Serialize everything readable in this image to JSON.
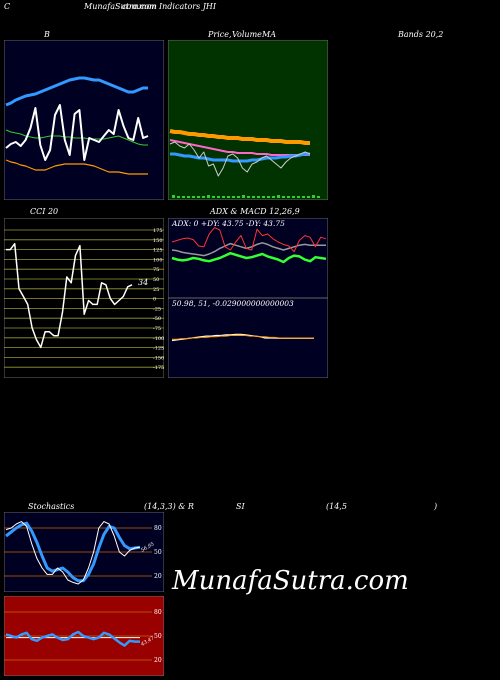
{
  "header": {
    "c_label": "C",
    "site_title": "MunafaSutra.com",
    "overlap_title": "common Indicators JHI",
    "b_label": "B",
    "price_label": "Price,",
    "volume_label": "Volume",
    "ma_label": "MA",
    "bands_label": "Bands 20,2"
  },
  "cci": {
    "title": "CCI 20",
    "last_value_label": "34",
    "ticks": [
      "175",
      "150",
      "125",
      "100",
      "75",
      "50",
      "25",
      "0",
      "-25",
      "-50",
      "-75",
      "-100",
      "-125",
      "-150",
      "-175"
    ]
  },
  "adx_macd": {
    "title": "ADX & MACD 12,26,9",
    "adx_readout": "ADX: 0  +DY: 43.75 -DY: 43.75",
    "macd_readout": "50.98,  51,  -0.029000000000003"
  },
  "stoch_rsi": {
    "title_left": "Stochastics",
    "title_mid": "(14,3,3) & R",
    "title_si": "SI",
    "title_right": "(14,5",
    "title_close": ")",
    "stoch_ticks": [
      "80",
      "50",
      "20"
    ],
    "rsi_ticks": [
      "80",
      "50",
      "20"
    ],
    "stoch_value_label": "56.95",
    "rsi_value_label": "43.47"
  },
  "watermark": "MunafaSutra.com",
  "colors": {
    "panel_dark": "#000022",
    "panel_green": "#003300",
    "cci_bg": "#000000",
    "rsi_bg": "#990000",
    "grid_orange": "#cc6600",
    "blue": "#3399ff",
    "orange": "#ff9900",
    "green": "#33cc33"
  },
  "chart_data": [
    {
      "type": "line",
      "panel": "bollinger",
      "series": [
        {
          "values": [
            52,
            56,
            58,
            54,
            60,
            72,
            92,
            55,
            40,
            50,
            85,
            95,
            60,
            45,
            86,
            90,
            40,
            62,
            60,
            58,
            64,
            70,
            66,
            90,
            74,
            62,
            60,
            82,
            62,
            64
          ]
        },
        {
          "values": [
            70,
            68,
            67,
            66,
            64,
            63,
            62,
            62,
            63,
            64,
            64,
            64,
            63,
            63,
            62,
            62,
            62,
            61,
            61,
            61,
            61,
            62,
            63,
            64,
            62,
            60,
            58,
            56,
            55,
            55
          ]
        },
        {
          "values": [
            95,
            97,
            100,
            102,
            104,
            105,
            106,
            108,
            110,
            112,
            114,
            116,
            118,
            120,
            121,
            122,
            122,
            121,
            120,
            120,
            118,
            116,
            114,
            112,
            110,
            108,
            108,
            110,
            112,
            112
          ]
        },
        {
          "values": [
            40,
            38,
            37,
            35,
            34,
            32,
            30,
            30,
            30,
            32,
            34,
            35,
            36,
            36,
            36,
            36,
            36,
            35,
            34,
            32,
            30,
            28,
            28,
            28,
            27,
            26,
            26,
            26,
            26,
            26
          ]
        }
      ]
    },
    {
      "type": "line",
      "panel": "price_volume_ma",
      "series": [
        {
          "values": [
            104,
            102,
            106,
            108,
            104,
            110,
            118,
            112,
            126,
            124,
            136,
            128,
            116,
            114,
            118,
            128,
            132,
            124,
            122,
            118,
            116,
            120,
            124,
            128,
            122,
            118,
            116,
            114,
            112,
            114
          ]
        },
        {
          "values": [
            114,
            114,
            115,
            116,
            116,
            117,
            118,
            118,
            119,
            120,
            120,
            120,
            120,
            121,
            121,
            121,
            121,
            120,
            120,
            119,
            118,
            118,
            118,
            117,
            117,
            116,
            116,
            115,
            114,
            114
          ]
        },
        {
          "values": [
            100,
            101,
            102,
            103,
            104,
            105,
            106,
            107,
            108,
            109,
            110,
            111,
            112,
            112,
            113,
            113,
            113,
            113,
            114,
            114,
            114,
            115,
            115,
            115,
            115,
            115,
            115,
            115,
            115,
            115
          ]
        },
        {
          "values": [
            91,
            92,
            92,
            93,
            94,
            94,
            95,
            95,
            96,
            96,
            97,
            97,
            98,
            98,
            98,
            99,
            99,
            99,
            100,
            100,
            100,
            101,
            101,
            101,
            102,
            102,
            102,
            102,
            103,
            103
          ]
        }
      ]
    },
    {
      "type": "line",
      "panel": "cci",
      "ylim": [
        -175,
        175
      ],
      "series": [
        {
          "values": [
            125,
            125,
            140,
            25,
            5,
            -15,
            -75,
            -105,
            -125,
            -85,
            -85,
            -95,
            -95,
            -35,
            55,
            40,
            110,
            135,
            -40,
            -5,
            -15,
            -15,
            40,
            35,
            0,
            -15,
            -5,
            5,
            30,
            35
          ]
        }
      ]
    },
    {
      "type": "line",
      "panel": "adx",
      "series": [
        {
          "values": [
            50,
            52,
            53,
            52,
            50,
            51,
            53,
            54,
            52,
            50,
            47,
            44,
            46,
            48,
            50,
            49,
            47,
            45,
            48,
            50,
            52,
            55,
            50,
            47,
            48,
            52,
            54,
            49,
            50,
            51
          ]
        },
        {
          "values": [
            30,
            28,
            26,
            25,
            27,
            35,
            36,
            20,
            12,
            15,
            36,
            40,
            30,
            22,
            38,
            40,
            14,
            22,
            20,
            26,
            30,
            33,
            35,
            42,
            28,
            22,
            24,
            36,
            24,
            26
          ]
        },
        {
          "values": [
            40,
            41,
            43,
            44,
            45,
            46,
            47,
            45,
            42,
            38,
            35,
            32,
            34,
            36,
            38,
            36,
            33,
            31,
            33,
            36,
            38,
            40,
            38,
            36,
            34,
            33,
            34,
            34,
            34,
            34
          ]
        }
      ]
    },
    {
      "type": "line",
      "panel": "macd",
      "series": [
        {
          "values": [
            50.8,
            50.85,
            50.9,
            50.95,
            51.0,
            51.05,
            51.1,
            51.15,
            51.15,
            51.2,
            51.2,
            51.25,
            51.25,
            51.3,
            51.3,
            51.25,
            51.2,
            51.15,
            51.1,
            51.0,
            51.0,
            51.0,
            50.98,
            50.98,
            50.98,
            50.98,
            50.98,
            50.98,
            50.98,
            50.98
          ]
        },
        {
          "values": [
            50.9,
            50.9,
            50.95,
            50.95,
            51.0,
            51.0,
            51.05,
            51.05,
            51.1,
            51.1,
            51.15,
            51.15,
            51.2,
            51.2,
            51.2,
            51.2,
            51.15,
            51.15,
            51.1,
            51.1,
            51.05,
            51.05,
            51.0,
            51.0,
            51.0,
            51.0,
            51.0,
            51.0,
            51.0,
            51.0
          ]
        }
      ]
    },
    {
      "type": "line",
      "panel": "stochastics",
      "ylim": [
        0,
        100
      ],
      "series": [
        {
          "values": [
            78,
            80,
            85,
            88,
            82,
            60,
            42,
            30,
            22,
            22,
            30,
            25,
            15,
            12,
            10,
            15,
            30,
            50,
            80,
            88,
            85,
            70,
            50,
            45,
            52,
            55,
            56
          ]
        },
        {
          "values": [
            70,
            75,
            80,
            84,
            86,
            76,
            62,
            45,
            30,
            26,
            28,
            30,
            25,
            18,
            14,
            14,
            22,
            35,
            55,
            72,
            82,
            80,
            68,
            58,
            54,
            55,
            56
          ]
        }
      ]
    },
    {
      "type": "line",
      "panel": "rsi",
      "ylim": [
        0,
        100
      ],
      "series": [
        {
          "values": [
            52,
            50,
            48,
            52,
            54,
            46,
            44,
            48,
            50,
            52,
            48,
            45,
            46,
            52,
            55,
            50,
            48,
            46,
            48,
            54,
            52,
            47,
            42,
            38,
            44,
            43,
            43
          ]
        },
        {
          "values": [
            48,
            48,
            48,
            48,
            48,
            48,
            48,
            48,
            48,
            48,
            48,
            48,
            48,
            48,
            48,
            48,
            48,
            48,
            48,
            48,
            48,
            48,
            48,
            48,
            48,
            48,
            48
          ]
        }
      ]
    }
  ]
}
